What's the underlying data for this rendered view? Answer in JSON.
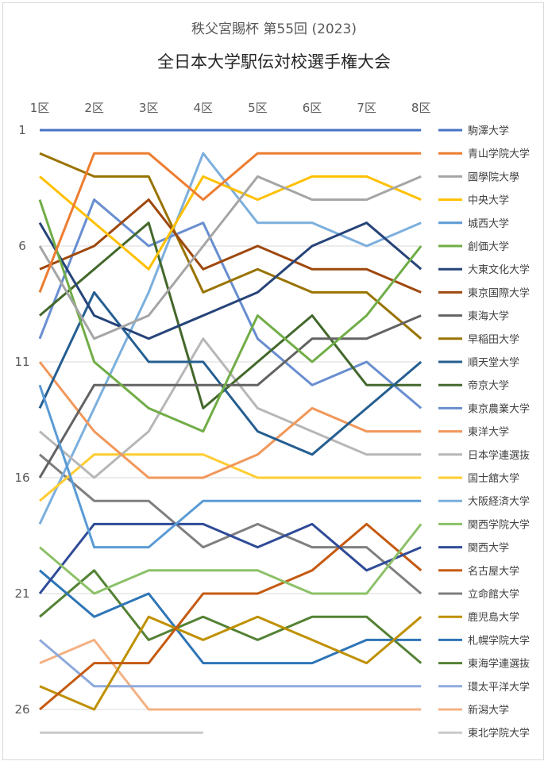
{
  "chart_data": {
    "type": "line",
    "subtitle": "秩父宮賜杯 第55回 (2023)",
    "title": "全日本大学駅伝対校選手権大会",
    "x": [
      "1区",
      "2区",
      "3区",
      "4区",
      "5区",
      "6区",
      "7区",
      "8区"
    ],
    "y_ticks": [
      "1",
      "6",
      "11",
      "16",
      "21",
      "26"
    ],
    "ylim": [
      1,
      26
    ],
    "y_reversed": true,
    "grid": true,
    "legend_position": "right",
    "series": [
      {
        "name": "駒澤大学",
        "color": "#4472C4",
        "values": [
          1,
          1,
          1,
          1,
          1,
          1,
          1,
          1
        ]
      },
      {
        "name": "青山学院大学",
        "color": "#ED7D31",
        "values": [
          8,
          2,
          2,
          4,
          2,
          2,
          2,
          2
        ]
      },
      {
        "name": "國學院大學",
        "color": "#A5A5A5",
        "values": [
          6,
          10,
          9,
          6,
          3,
          4,
          4,
          3
        ]
      },
      {
        "name": "中央大学",
        "color": "#FFC000",
        "values": [
          3,
          5,
          7,
          3,
          4,
          3,
          3,
          4
        ]
      },
      {
        "name": "城西大学",
        "color": "#5B9BD5",
        "values": [
          12,
          19,
          19,
          17,
          17,
          17,
          17,
          17
        ]
      },
      {
        "name": "創価大学",
        "color": "#70AD47",
        "values": [
          4,
          11,
          13,
          14,
          9,
          11,
          9,
          6
        ]
      },
      {
        "name": "大東文化大学",
        "color": "#264478",
        "values": [
          5,
          9,
          10,
          9,
          8,
          6,
          5,
          7
        ]
      },
      {
        "name": "東京国際大学",
        "color": "#9E480E",
        "values": [
          7,
          6,
          4,
          7,
          6,
          7,
          7,
          8
        ]
      },
      {
        "name": "東海大学",
        "color": "#636363",
        "values": [
          16,
          12,
          12,
          12,
          12,
          10,
          10,
          9
        ]
      },
      {
        "name": "早稲田大学",
        "color": "#997300",
        "values": [
          2,
          3,
          3,
          8,
          7,
          8,
          8,
          10
        ]
      },
      {
        "name": "順天堂大学",
        "color": "#255E91",
        "values": [
          13,
          8,
          11,
          11,
          14,
          15,
          13,
          11
        ]
      },
      {
        "name": "帝京大学",
        "color": "#43682B",
        "values": [
          9,
          7,
          5,
          13,
          11,
          9,
          12,
          12
        ]
      },
      {
        "name": "東京農業大学",
        "color": "#698ED0",
        "values": [
          10,
          4,
          6,
          5,
          10,
          12,
          11,
          13
        ]
      },
      {
        "name": "東洋大学",
        "color": "#F1975A",
        "values": [
          11,
          14,
          16,
          16,
          15,
          13,
          14,
          14
        ]
      },
      {
        "name": "日本学連選抜",
        "color": "#B7B7B7",
        "values": [
          14,
          16,
          14,
          10,
          13,
          14,
          15,
          15
        ]
      },
      {
        "name": "国士舘大学",
        "color": "#FFCD33",
        "values": [
          17,
          15,
          15,
          15,
          16,
          16,
          16,
          16
        ]
      },
      {
        "name": "大阪経済大学",
        "color": "#7CAFDD",
        "values": [
          18,
          13,
          8,
          2,
          5,
          5,
          6,
          5
        ]
      },
      {
        "name": "関西学院大学",
        "color": "#8CC168",
        "values": [
          19,
          21,
          20,
          20,
          20,
          21,
          21,
          18
        ]
      },
      {
        "name": "関西大学",
        "color": "#2F4B98",
        "values": [
          21,
          18,
          18,
          18,
          19,
          18,
          20,
          19
        ]
      },
      {
        "name": "名古屋大学",
        "color": "#C55A11",
        "values": [
          26,
          24,
          24,
          21,
          21,
          20,
          18,
          20
        ]
      },
      {
        "name": "立命館大学",
        "color": "#7F7F7F",
        "values": [
          15,
          17,
          17,
          19,
          18,
          19,
          19,
          21
        ]
      },
      {
        "name": "鹿児島大学",
        "color": "#BF9000",
        "values": [
          25,
          26,
          22,
          23,
          22,
          23,
          24,
          22
        ]
      },
      {
        "name": "札幌学院大学",
        "color": "#2E75B6",
        "values": [
          20,
          22,
          21,
          24,
          24,
          24,
          23,
          23
        ]
      },
      {
        "name": "東海学連選抜",
        "color": "#548235",
        "values": [
          22,
          20,
          23,
          22,
          23,
          22,
          22,
          24
        ]
      },
      {
        "name": "環太平洋大学",
        "color": "#8FAADC",
        "values": [
          23,
          25,
          25,
          25,
          25,
          25,
          25,
          25
        ]
      },
      {
        "name": "新潟大学",
        "color": "#F4B183",
        "values": [
          24,
          23,
          26,
          26,
          26,
          26,
          26,
          26
        ]
      },
      {
        "name": "東北学院大学",
        "color": "#C9C9C9",
        "values": [
          27,
          27,
          27,
          27,
          null,
          null,
          null,
          null
        ]
      }
    ]
  }
}
